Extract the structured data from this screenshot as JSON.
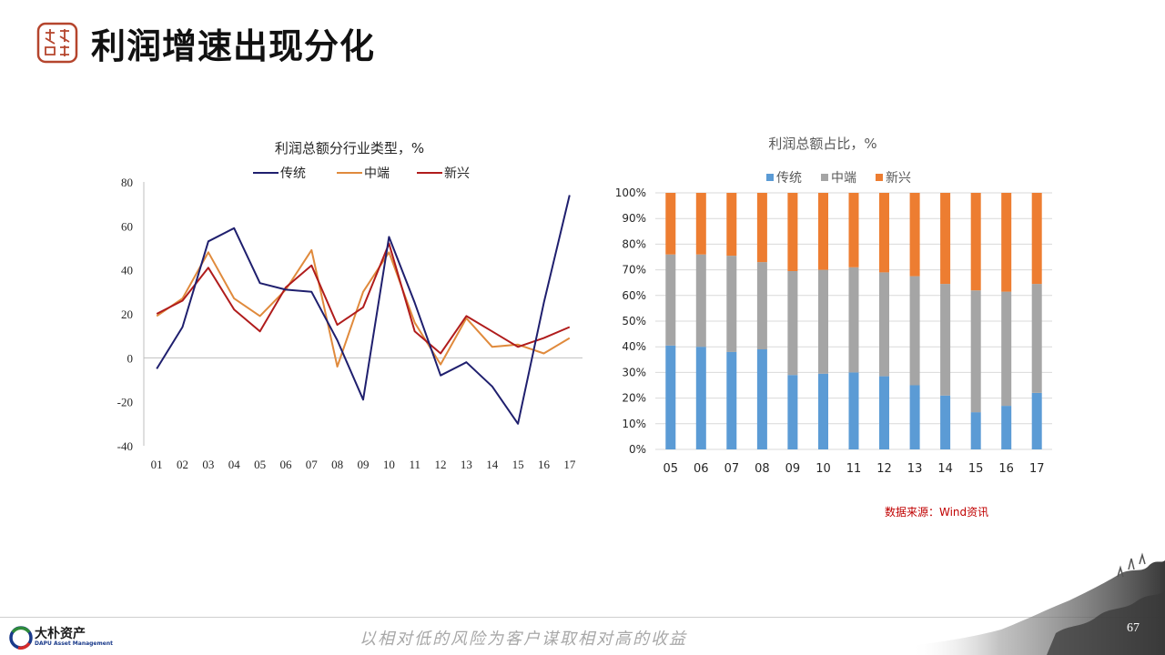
{
  "header": {
    "title": "利润增速出现分化"
  },
  "source_note": "数据来源：Wind资讯",
  "footer": {
    "brand_cn": "大朴资产",
    "brand_en": "DAPU Asset Management",
    "slogan": "以相对低的风险为客户谋取相对高的收益",
    "page_number": "67"
  },
  "colors": {
    "traditional_line": "#1f1f6e",
    "mid_line": "#e08a3c",
    "emerging_line": "#b01c1c",
    "traditional_bar": "#5b9bd5",
    "mid_bar": "#a5a5a5",
    "emerging_bar": "#ed7d31",
    "seal": "#b5452d"
  },
  "chart_data": [
    {
      "type": "line",
      "title": "利润总额分行业类型，%",
      "categories": [
        "01",
        "02",
        "03",
        "04",
        "05",
        "06",
        "07",
        "08",
        "09",
        "10",
        "11",
        "12",
        "13",
        "14",
        "15",
        "16",
        "17"
      ],
      "series": [
        {
          "name": "传统",
          "values": [
            -5,
            14,
            53,
            59,
            34,
            31,
            30,
            8,
            -19,
            55,
            25,
            -8,
            -2,
            -13,
            -30,
            25,
            74
          ]
        },
        {
          "name": "中端",
          "values": [
            19,
            27,
            48,
            27,
            19,
            31,
            49,
            -4,
            30,
            48,
            16,
            -3,
            18,
            5,
            6,
            2,
            9
          ]
        },
        {
          "name": "新兴",
          "values": [
            20,
            26,
            41,
            22,
            12,
            32,
            42,
            15,
            23,
            52,
            12,
            2,
            19,
            12,
            5,
            9,
            14
          ]
        }
      ],
      "ylim": [
        -40,
        80
      ],
      "yticks": [
        "80",
        "60",
        "40",
        "20",
        "0",
        "-20",
        "-40"
      ],
      "legend": "top"
    },
    {
      "type": "bar",
      "stacked": true,
      "title": "利润总额占比，%",
      "categories": [
        "05",
        "06",
        "07",
        "08",
        "09",
        "10",
        "11",
        "12",
        "13",
        "14",
        "15",
        "16",
        "17"
      ],
      "series": [
        {
          "name": "传统",
          "values": [
            40.5,
            40,
            38,
            39,
            29,
            29.5,
            30,
            28.5,
            25,
            21,
            14.5,
            17,
            22
          ]
        },
        {
          "name": "中端",
          "values": [
            35.5,
            36,
            37.5,
            34,
            40.5,
            40.5,
            41,
            40.5,
            42.5,
            43.5,
            47.5,
            44.5,
            42.5
          ]
        },
        {
          "name": "新兴",
          "values": [
            24,
            24,
            24.5,
            27,
            30.5,
            30,
            29,
            31,
            32.5,
            35.5,
            38,
            38.5,
            35.5
          ]
        }
      ],
      "ylim": [
        0,
        100
      ],
      "yticks": [
        "0%",
        "10%",
        "20%",
        "30%",
        "40%",
        "50%",
        "60%",
        "70%",
        "80%",
        "90%",
        "100%"
      ],
      "legend": "top"
    }
  ]
}
